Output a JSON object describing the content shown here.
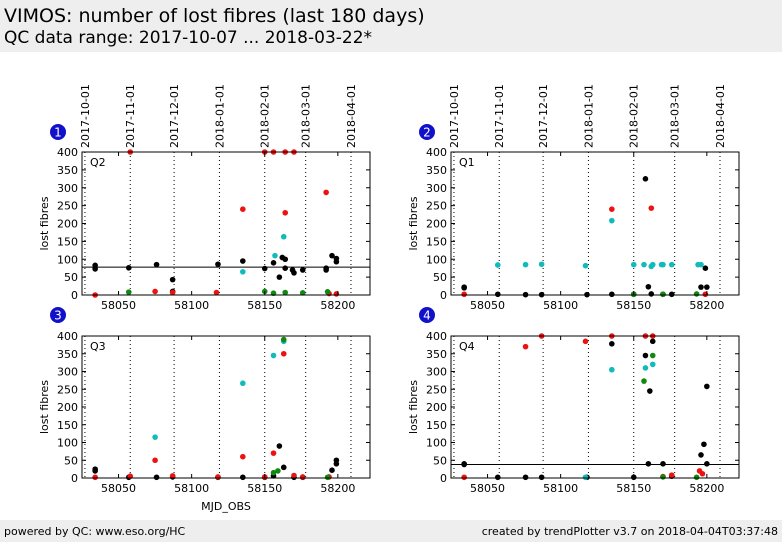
{
  "header": {
    "title": "VIMOS: number of lost fibres (last 180 days)",
    "subtitle": "QC data range: 2017-10-07 ... 2018-03-22*"
  },
  "footer": {
    "left": "powered by QC: www.eso.org/HC",
    "right": "created by trendPlotter v3.7 on 2018-04-04T03:37:48"
  },
  "colors": {
    "red": "#ee1111",
    "cyan": "#11bbbb",
    "green": "#118811",
    "black": "#000000",
    "badge": "#1111cc"
  },
  "chart_data": [
    {
      "type": "scatter",
      "badge": "1",
      "quadrant_label": "Q2",
      "ylabel": "lost fibres",
      "xlabel": "",
      "xlim": [
        58025,
        58222
      ],
      "ylim": [
        0,
        400
      ],
      "xticks": [
        58050,
        58100,
        58150,
        58200
      ],
      "yticks": [
        0,
        50,
        100,
        150,
        200,
        250,
        300,
        350,
        400
      ],
      "show_x_tick_labels": true,
      "date_ticks": [
        {
          "label": "2017-10-01",
          "mjd": 58027
        },
        {
          "label": "2017-11-01",
          "mjd": 58058
        },
        {
          "label": "2017-12-01",
          "mjd": 58088
        },
        {
          "label": "2018-01-01",
          "mjd": 58119
        },
        {
          "label": "2018-02-01",
          "mjd": 58150
        },
        {
          "label": "2018-03-01",
          "mjd": 58178
        },
        {
          "label": "2018-04-01",
          "mjd": 58209
        }
      ],
      "reference_line": 78,
      "series": [
        {
          "color": "black",
          "points": [
            [
              58034,
              83
            ],
            [
              58034,
              73
            ],
            [
              58057,
              76
            ],
            [
              58076,
              85
            ],
            [
              58087,
              43
            ],
            [
              58087,
              10
            ],
            [
              58118,
              86
            ],
            [
              58135,
              95
            ],
            [
              58150,
              74
            ],
            [
              58156,
              90
            ],
            [
              58160,
              50
            ],
            [
              58162,
              105
            ],
            [
              58164,
              100
            ],
            [
              58164,
              75
            ],
            [
              58169,
              70
            ],
            [
              58170,
              62
            ],
            [
              58176,
              70
            ],
            [
              58192,
              75
            ],
            [
              58192,
              70
            ],
            [
              58196,
              110
            ],
            [
              58199,
              102
            ],
            [
              58199,
              93
            ]
          ]
        },
        {
          "color": "red",
          "points": [
            [
              58034,
              0
            ],
            [
              58058,
              400
            ],
            [
              58075,
              10
            ],
            [
              58087,
              7
            ],
            [
              58117,
              7
            ],
            [
              58135,
              240
            ],
            [
              58150,
              400
            ],
            [
              58156,
              400
            ],
            [
              58164,
              400
            ],
            [
              58164,
              230
            ],
            [
              58170,
              400
            ],
            [
              58192,
              287
            ],
            [
              58194,
              4
            ],
            [
              58199,
              3
            ]
          ]
        },
        {
          "color": "cyan",
          "points": [
            [
              58135,
              65
            ],
            [
              58157,
              110
            ],
            [
              58163,
              163
            ]
          ]
        },
        {
          "color": "green",
          "points": [
            [
              58057,
              8
            ],
            [
              58150,
              10
            ],
            [
              58156,
              5
            ],
            [
              58164,
              7
            ],
            [
              58176,
              6
            ],
            [
              58193,
              9
            ]
          ]
        }
      ]
    },
    {
      "type": "scatter",
      "badge": "2",
      "quadrant_label": "Q1",
      "ylabel": "lost fibres",
      "xlabel": "",
      "xlim": [
        58025,
        58222
      ],
      "ylim": [
        0,
        400
      ],
      "xticks": [
        58050,
        58100,
        58150,
        58200
      ],
      "yticks": [
        0,
        50,
        100,
        150,
        200,
        250,
        300,
        350,
        400
      ],
      "show_x_tick_labels": true,
      "date_ticks": [
        {
          "label": "2017-10-01",
          "mjd": 58027
        },
        {
          "label": "2017-11-01",
          "mjd": 58058
        },
        {
          "label": "2017-12-01",
          "mjd": 58088
        },
        {
          "label": "2018-01-01",
          "mjd": 58119
        },
        {
          "label": "2018-02-01",
          "mjd": 58150
        },
        {
          "label": "2018-03-01",
          "mjd": 58178
        },
        {
          "label": "2018-04-01",
          "mjd": 58209
        }
      ],
      "reference_line": null,
      "series": [
        {
          "color": "black",
          "points": [
            [
              58034,
              22
            ],
            [
              58034,
              20
            ],
            [
              58057,
              2
            ],
            [
              58076,
              1
            ],
            [
              58087,
              1
            ],
            [
              58118,
              1
            ],
            [
              58135,
              2
            ],
            [
              58150,
              2
            ],
            [
              58158,
              325
            ],
            [
              58160,
              23
            ],
            [
              58162,
              3
            ],
            [
              58170,
              2
            ],
            [
              58176,
              2
            ],
            [
              58196,
              22
            ],
            [
              58199,
              75
            ],
            [
              58200,
              22
            ]
          ]
        },
        {
          "color": "cyan",
          "points": [
            [
              58057,
              84
            ],
            [
              58076,
              85
            ],
            [
              58087,
              86
            ],
            [
              58117,
              82
            ],
            [
              58135,
              208
            ],
            [
              58150,
              85
            ],
            [
              58157,
              85
            ],
            [
              58162,
              80
            ],
            [
              58163,
              85
            ],
            [
              58169,
              85
            ],
            [
              58170,
              85
            ],
            [
              58176,
              85
            ],
            [
              58194,
              85
            ],
            [
              58196,
              85
            ]
          ]
        },
        {
          "color": "red",
          "points": [
            [
              58034,
              2
            ],
            [
              58135,
              240
            ],
            [
              58162,
              243
            ],
            [
              58199,
              2
            ]
          ]
        },
        {
          "color": "green",
          "points": [
            [
              58150,
              2
            ],
            [
              58170,
              2
            ],
            [
              58193,
              3
            ]
          ]
        }
      ]
    },
    {
      "type": "scatter",
      "badge": "3",
      "quadrant_label": "Q3",
      "ylabel": "lost fibres",
      "xlabel": "",
      "xlim": [
        58025,
        58222
      ],
      "ylim": [
        0,
        400
      ],
      "xticks": [
        58050,
        58100,
        58150,
        58200
      ],
      "yticks": [
        0,
        50,
        100,
        150,
        200,
        250,
        300,
        350,
        400
      ],
      "show_x_tick_labels": true,
      "date_ticks": [],
      "reference_line": null,
      "series": [
        {
          "color": "black",
          "points": [
            [
              58034,
              25
            ],
            [
              58034,
              20
            ],
            [
              58057,
              2
            ],
            [
              58076,
              2
            ],
            [
              58087,
              3
            ],
            [
              58118,
              2
            ],
            [
              58135,
              2
            ],
            [
              58150,
              2
            ],
            [
              58156,
              6
            ],
            [
              58160,
              90
            ],
            [
              58163,
              30
            ],
            [
              58170,
              2
            ],
            [
              58176,
              2
            ],
            [
              58196,
              22
            ],
            [
              58199,
              50
            ],
            [
              58199,
              40
            ]
          ]
        },
        {
          "color": "red",
          "points": [
            [
              58034,
              2
            ],
            [
              58058,
              5
            ],
            [
              58075,
              50
            ],
            [
              58087,
              6
            ],
            [
              58118,
              3
            ],
            [
              58135,
              60
            ],
            [
              58150,
              3
            ],
            [
              58156,
              70
            ],
            [
              58163,
              350
            ],
            [
              58170,
              7
            ],
            [
              58176,
              3
            ],
            [
              58194,
              3
            ]
          ]
        },
        {
          "color": "cyan",
          "points": [
            [
              58075,
              115
            ],
            [
              58135,
              267
            ],
            [
              58156,
              345
            ],
            [
              58163,
              385
            ]
          ]
        },
        {
          "color": "green",
          "points": [
            [
              58156,
              15
            ],
            [
              58159,
              20
            ],
            [
              58163,
              390
            ],
            [
              58193,
              2
            ]
          ]
        }
      ]
    },
    {
      "type": "scatter",
      "badge": "4",
      "quadrant_label": "Q4",
      "ylabel": "lost fibres",
      "xlabel": "",
      "xlim": [
        58025,
        58222
      ],
      "ylim": [
        0,
        400
      ],
      "xticks": [
        58050,
        58100,
        58150,
        58200
      ],
      "yticks": [
        0,
        50,
        100,
        150,
        200,
        250,
        300,
        350,
        400
      ],
      "show_x_tick_labels": true,
      "date_ticks": [],
      "reference_line": 38,
      "series": [
        {
          "color": "black",
          "points": [
            [
              58034,
              40
            ],
            [
              58034,
              38
            ],
            [
              58057,
              2
            ],
            [
              58076,
              2
            ],
            [
              58087,
              2
            ],
            [
              58118,
              2
            ],
            [
              58135,
              378
            ],
            [
              58150,
              2
            ],
            [
              58158,
              345
            ],
            [
              58160,
              40
            ],
            [
              58161,
              245
            ],
            [
              58163,
              385
            ],
            [
              58170,
              40
            ],
            [
              58176,
              5
            ],
            [
              58196,
              65
            ],
            [
              58198,
              95
            ],
            [
              58200,
              40
            ],
            [
              58200,
              258
            ]
          ]
        },
        {
          "color": "red",
          "points": [
            [
              58034,
              2
            ],
            [
              58076,
              370
            ],
            [
              58087,
              400
            ],
            [
              58117,
              385
            ],
            [
              58135,
              400
            ],
            [
              58158,
              400
            ],
            [
              58163,
              400
            ],
            [
              58170,
              4
            ],
            [
              58176,
              8
            ],
            [
              58195,
              20
            ],
            [
              58197,
              12
            ]
          ]
        },
        {
          "color": "cyan",
          "points": [
            [
              58117,
              2
            ],
            [
              58135,
              305
            ],
            [
              58158,
              310
            ],
            [
              58163,
              320
            ]
          ]
        },
        {
          "color": "green",
          "points": [
            [
              58157,
              273
            ],
            [
              58163,
              345
            ],
            [
              58170,
              3
            ],
            [
              58193,
              2
            ]
          ]
        }
      ]
    }
  ]
}
